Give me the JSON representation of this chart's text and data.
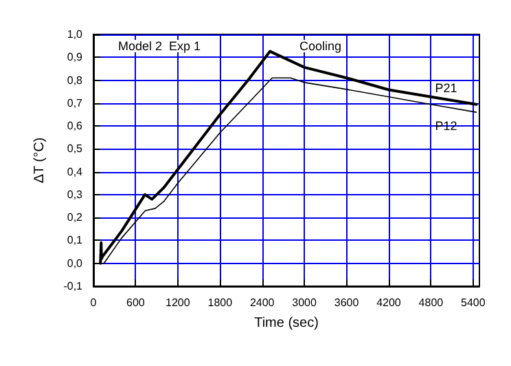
{
  "chart_data": {
    "type": "line",
    "xlabel": "Time (sec)",
    "ylabel": "ΔT (°C)",
    "annotations": [
      "Model 2  Exp 1",
      "Cooling"
    ],
    "xlim": [
      0,
      5490
    ],
    "xticks": [
      0,
      600,
      1200,
      1800,
      2400,
      3000,
      3600,
      4200,
      4800,
      5400
    ],
    "ylim": [
      -0.1,
      1.0
    ],
    "yticks": [
      {
        "value": -0.1,
        "label": "-0,1"
      },
      {
        "value": 0,
        "label": "0,0"
      },
      {
        "value": 0.1,
        "label": "0,1"
      },
      {
        "value": 0.2,
        "label": "0,2"
      },
      {
        "value": 0.3,
        "label": "0,3"
      },
      {
        "value": 0.4,
        "label": "0,4"
      },
      {
        "value": 0.5,
        "label": "0,5"
      },
      {
        "value": 0.6,
        "label": "0,6"
      },
      {
        "value": 0.7,
        "label": "0,7"
      },
      {
        "value": 0.8,
        "label": "0,8"
      },
      {
        "value": 0.9,
        "label": "0,9"
      },
      {
        "value": 1.0,
        "label": "1,0"
      }
    ],
    "grid": true,
    "legend": false,
    "marker": "none",
    "line_style": "solid",
    "series": [
      {
        "name": "P21",
        "color": "#000000",
        "x": [
          100,
          110,
          115,
          130,
          400,
          733,
          833,
          1000,
          1400,
          1800,
          2200,
          2511,
          3000,
          3600,
          4200,
          4800,
          5446
        ],
        "values": [
          0.0,
          0.09,
          0.02,
          0.03,
          0.14,
          0.3,
          0.28,
          0.33,
          0.49,
          0.65,
          0.8,
          0.926,
          0.856,
          0.81,
          0.758,
          0.727,
          0.694
        ]
      },
      {
        "name": "P12",
        "color": "#000000",
        "x": [
          100,
          150,
          400,
          737,
          880,
          1000,
          1200,
          1800,
          2543,
          2804,
          3000,
          3600,
          4200,
          4800,
          5446
        ],
        "values": [
          0.0,
          0.0,
          0.11,
          0.23,
          0.24,
          0.27,
          0.35,
          0.57,
          0.81,
          0.81,
          0.79,
          0.76,
          0.727,
          0.694,
          0.66
        ]
      }
    ]
  }
}
